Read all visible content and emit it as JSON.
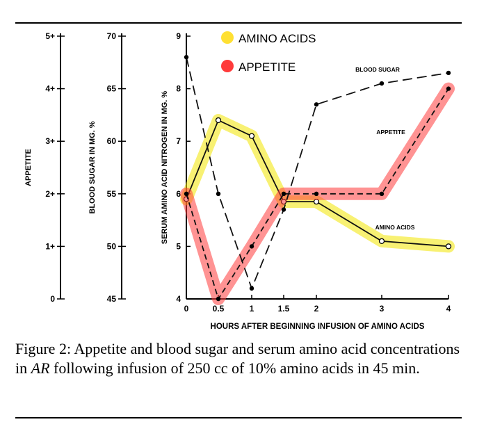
{
  "figure": {
    "caption_prefix": "Figure 2: Appetite and blood sugar and serum amino acid concentrations in ",
    "caption_italic": "AR",
    "caption_suffix": " following infusion of 250 cc of 10% amino acids in 45 min."
  },
  "chart_data": {
    "type": "line",
    "xlabel": "HOURS AFTER BEGINNING INFUSION OF AMINO ACIDS",
    "x_ticks": [
      "0",
      "0.5",
      "1",
      "1.5",
      "2",
      "3",
      "4"
    ],
    "xlim": [
      0,
      4
    ],
    "axes": {
      "appetite": {
        "label": "APPETITE",
        "ticks": [
          "0",
          "1+",
          "2+",
          "3+",
          "4+",
          "5+"
        ],
        "range": [
          0,
          5
        ]
      },
      "blood_sugar": {
        "label": "BLOOD SUGAR IN MG. %",
        "ticks": [
          "45",
          "50",
          "55",
          "60",
          "65",
          "70"
        ],
        "range": [
          45,
          70
        ]
      },
      "amino_nitrogen": {
        "label": "SERUM AMINO ACID NITROGEN IN MG. %",
        "ticks": [
          "4",
          "5",
          "6",
          "7",
          "8",
          "9"
        ],
        "range": [
          4,
          9
        ]
      }
    },
    "legend": [
      {
        "label": "AMINO ACIDS",
        "color": "#ffe033"
      },
      {
        "label": "APPETITE",
        "color": "#ff3b3b"
      }
    ],
    "series": [
      {
        "name": "AMINO ACIDS",
        "axis": "amino_nitrogen",
        "style": "solid",
        "highlight": "#f2e600",
        "x": [
          0,
          0.5,
          1,
          1.5,
          2,
          3,
          4
        ],
        "y": [
          5.9,
          7.4,
          7.1,
          5.85,
          5.85,
          5.1,
          5.0
        ]
      },
      {
        "name": "APPETITE",
        "axis": "appetite",
        "style": "dashed",
        "highlight": "#ff3b3b",
        "x": [
          0,
          0.5,
          1,
          1.5,
          2,
          3,
          4
        ],
        "y": [
          2.0,
          0.0,
          1.0,
          2.0,
          2.0,
          2.0,
          4.0
        ]
      },
      {
        "name": "BLOOD SUGAR",
        "axis": "blood_sugar",
        "style": "longdash",
        "highlight": null,
        "x": [
          0,
          0.5,
          1,
          1.5,
          2,
          3,
          4
        ],
        "y": [
          68,
          55,
          46,
          53.5,
          63.5,
          65.5,
          66.5
        ]
      }
    ],
    "annotations": [
      {
        "text": "BLOOD SUGAR",
        "series": "BLOOD SUGAR"
      },
      {
        "text": "APPETITE",
        "series": "APPETITE"
      },
      {
        "text": "AMINO ACIDS",
        "series": "AMINO ACIDS"
      }
    ]
  }
}
